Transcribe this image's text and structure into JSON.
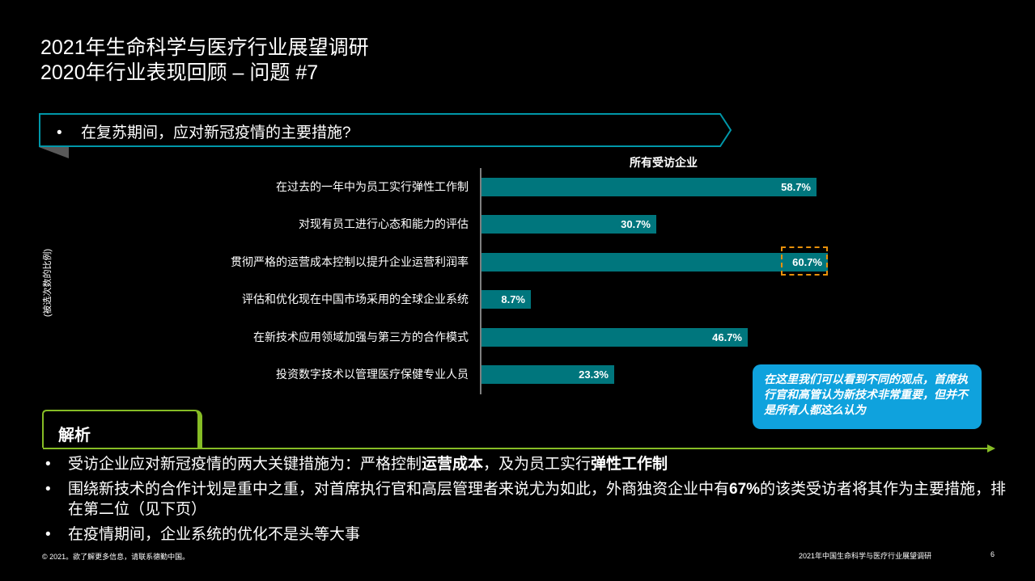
{
  "header": {
    "title_line1": "2021年生命科学与医疗行业展望调研",
    "title_line2": "2020年行业表现回顾 – 问题 #7"
  },
  "question": {
    "bullet": "•",
    "text": "在复苏期间，应对新冠疫情的主要措施?"
  },
  "colors": {
    "bar": "#00767D",
    "banner_border": "#0097A9",
    "highlight_border": "#E8900A",
    "callout_bg": "#0FA2DD",
    "accent_green": "#86BC25"
  },
  "chart_data": {
    "type": "bar",
    "orientation": "horizontal",
    "title": "所有受访企业",
    "ylabel": "(被选次数的比例)",
    "xlabel": "",
    "categories": [
      "在过去的一年中为员工实行弹性工作制",
      "对现有员工进行心态和能力的评估",
      "贯彻严格的运营成本控制以提升企业运营利润率",
      "评估和优化现在中国市场采用的全球企业系统",
      "在新技术应用领域加强与第三方的合作模式",
      "投资数字技术以管理医疗保健专业人员"
    ],
    "values": [
      58.7,
      30.7,
      60.7,
      8.7,
      46.7,
      23.3
    ],
    "value_labels": [
      "58.7%",
      "30.7%",
      "60.7%",
      "8.7%",
      "46.7%",
      "23.3%"
    ],
    "highlighted_index": 2,
    "xlim": [
      0,
      70
    ],
    "grid": false,
    "legend": "none"
  },
  "callout": {
    "text": "在这里我们可以看到不同的观点，首席执行官和高管认为新技术非常重要，但并不是所有人都这么认为"
  },
  "analysis": {
    "label": "解析",
    "bullets": [
      {
        "parts": [
          {
            "text": "受访企业应对新冠疫情的两大关键措施为：严格控制",
            "bold": false
          },
          {
            "text": "运营成本",
            "bold": true
          },
          {
            "text": "，及为员工实行",
            "bold": false
          },
          {
            "text": "弹性工作制",
            "bold": true
          }
        ]
      },
      {
        "parts": [
          {
            "text": "围绕新技术的合作计划是重中之重，对首席执行官和高层管理者来说尤为如此，外商独资企业中有",
            "bold": false
          },
          {
            "text": "67%",
            "bold": true
          },
          {
            "text": "的该类受访者将其作为主要措施，排在第二位（见下页）",
            "bold": false
          }
        ]
      },
      {
        "parts": [
          {
            "text": "在疫情期间，企业系统的优化不是头等大事",
            "bold": false
          }
        ]
      }
    ]
  },
  "footer": {
    "left": "© 2021。欲了解更多信息，请联系德勤中国。",
    "right": "2021年中国生命科学与医疗行业展望调研",
    "page": "6"
  }
}
